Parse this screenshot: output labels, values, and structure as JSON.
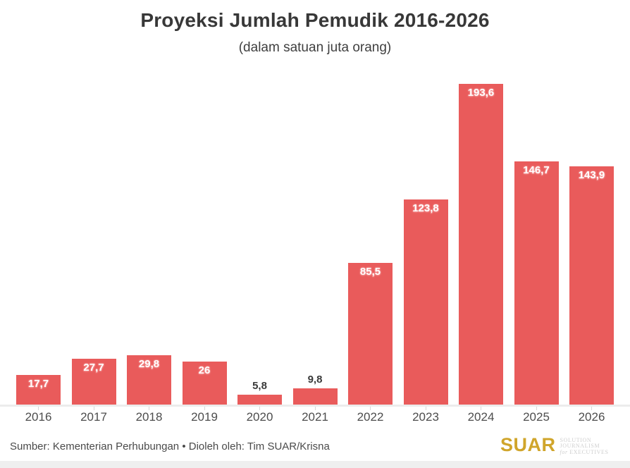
{
  "header": {
    "title": "Proyeksi Jumlah Pemudik 2016-2026",
    "subtitle": "(dalam satuan juta orang)"
  },
  "footer": {
    "source": "Sumber: Kementerian Perhubungan • Dioleh oleh: Tim SUAR/Krisna",
    "logo": {
      "word": "SUAR",
      "tagline_line1": "SOLUTION JOURNALISM",
      "tagline_line2_prefix": "for",
      "tagline_line2": " EXECUTIVES"
    }
  },
  "colors": {
    "bar": "#e95b5b",
    "bar_label_inside": "#ffffff",
    "bar_label_outside": "#3a3a3a",
    "title": "#383838",
    "axis_label": "#4d4d4d",
    "footer_text": "#4a4a4a",
    "logo_gold": "#d0a52b",
    "axis_band": "#ececec",
    "bottom_strip": "#efefef"
  },
  "chart_data": {
    "type": "bar",
    "title": "Proyeksi Jumlah Pemudik 2016-2026",
    "subtitle": "(dalam satuan juta orang)",
    "categories": [
      "2016",
      "2017",
      "2018",
      "2019",
      "2020",
      "2021",
      "2022",
      "2023",
      "2024",
      "2025",
      "2026"
    ],
    "values": [
      17.7,
      27.7,
      29.8,
      26,
      5.8,
      9.8,
      85.5,
      123.8,
      193.6,
      146.7,
      143.9
    ],
    "value_labels": [
      "17,7",
      "27,7",
      "29,8",
      "26",
      "5,8",
      "9,8",
      "85,5",
      "123,8",
      "193,6",
      "146,7",
      "143,9"
    ],
    "xlabel": "",
    "ylabel": "juta orang",
    "ylim": [
      0,
      200
    ],
    "grid": false,
    "legend": "none",
    "bar_color": "#e95b5b"
  }
}
